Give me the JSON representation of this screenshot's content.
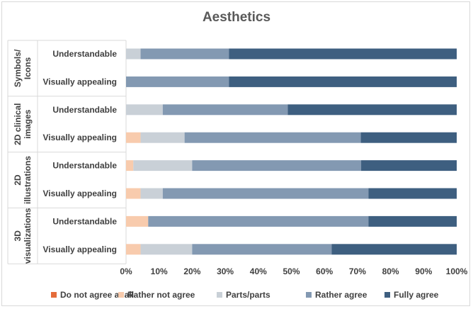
{
  "chart_data": {
    "type": "bar",
    "orientation": "horizontal",
    "stacked": "percent",
    "title": "Aesthetics",
    "groups": [
      {
        "name": "Symbols/ Icons",
        "lines": [
          "Symbols/",
          "Icons"
        ],
        "rows": [
          "Understandable",
          "Visually appealing"
        ]
      },
      {
        "name": "2D clinical images",
        "lines": [
          "2D clinical",
          "images"
        ],
        "rows": [
          "Understandable",
          "Visually appealing"
        ]
      },
      {
        "name": "2D illustrations",
        "lines": [
          "2D",
          "illustrations"
        ],
        "rows": [
          "Understandable",
          "Visually appealing"
        ]
      },
      {
        "name": "3D visualizations",
        "lines": [
          "3D",
          "visualizations"
        ],
        "rows": [
          "Understandable",
          "Visually appealing"
        ]
      }
    ],
    "categories": [
      "Symbols/ Icons - Understandable",
      "Symbols/ Icons - Visually appealing",
      "2D clinical images - Understandable",
      "2D clinical images - Visually appealing",
      "2D illustrations - Understandable",
      "2D illustrations - Visually appealing",
      "3D visualizations - Understandable",
      "3D visualizations - Visually appealing"
    ],
    "series": [
      {
        "name": "Do not agree at all",
        "color": "#e46c3b",
        "values": [
          0,
          0,
          0,
          0,
          0,
          0,
          0,
          0
        ]
      },
      {
        "name": "Rather not agree",
        "color": "#f8cbad",
        "values": [
          0,
          0,
          0,
          4.4,
          2.2,
          4.4,
          6.7,
          4.4
        ]
      },
      {
        "name": "Parts/parts",
        "color": "#c9d0d7",
        "values": [
          4.4,
          0,
          11.1,
          13.3,
          17.8,
          6.7,
          0,
          15.6
        ]
      },
      {
        "name": "Rather agree",
        "color": "#8399b2",
        "values": [
          26.7,
          31.1,
          37.8,
          53.3,
          51.1,
          62.2,
          66.6,
          42.2
        ]
      },
      {
        "name": "Fully agree",
        "color": "#3e5f80",
        "values": [
          68.9,
          68.9,
          51.1,
          29.0,
          28.9,
          26.7,
          26.7,
          37.8
        ]
      }
    ],
    "x_ticks": [
      "0%",
      "10%",
      "20%",
      "30%",
      "40%",
      "50%",
      "60%",
      "70%",
      "80%",
      "90%",
      "100%"
    ],
    "xlim": [
      0,
      100
    ],
    "grid": false,
    "legend_position": "bottom"
  }
}
